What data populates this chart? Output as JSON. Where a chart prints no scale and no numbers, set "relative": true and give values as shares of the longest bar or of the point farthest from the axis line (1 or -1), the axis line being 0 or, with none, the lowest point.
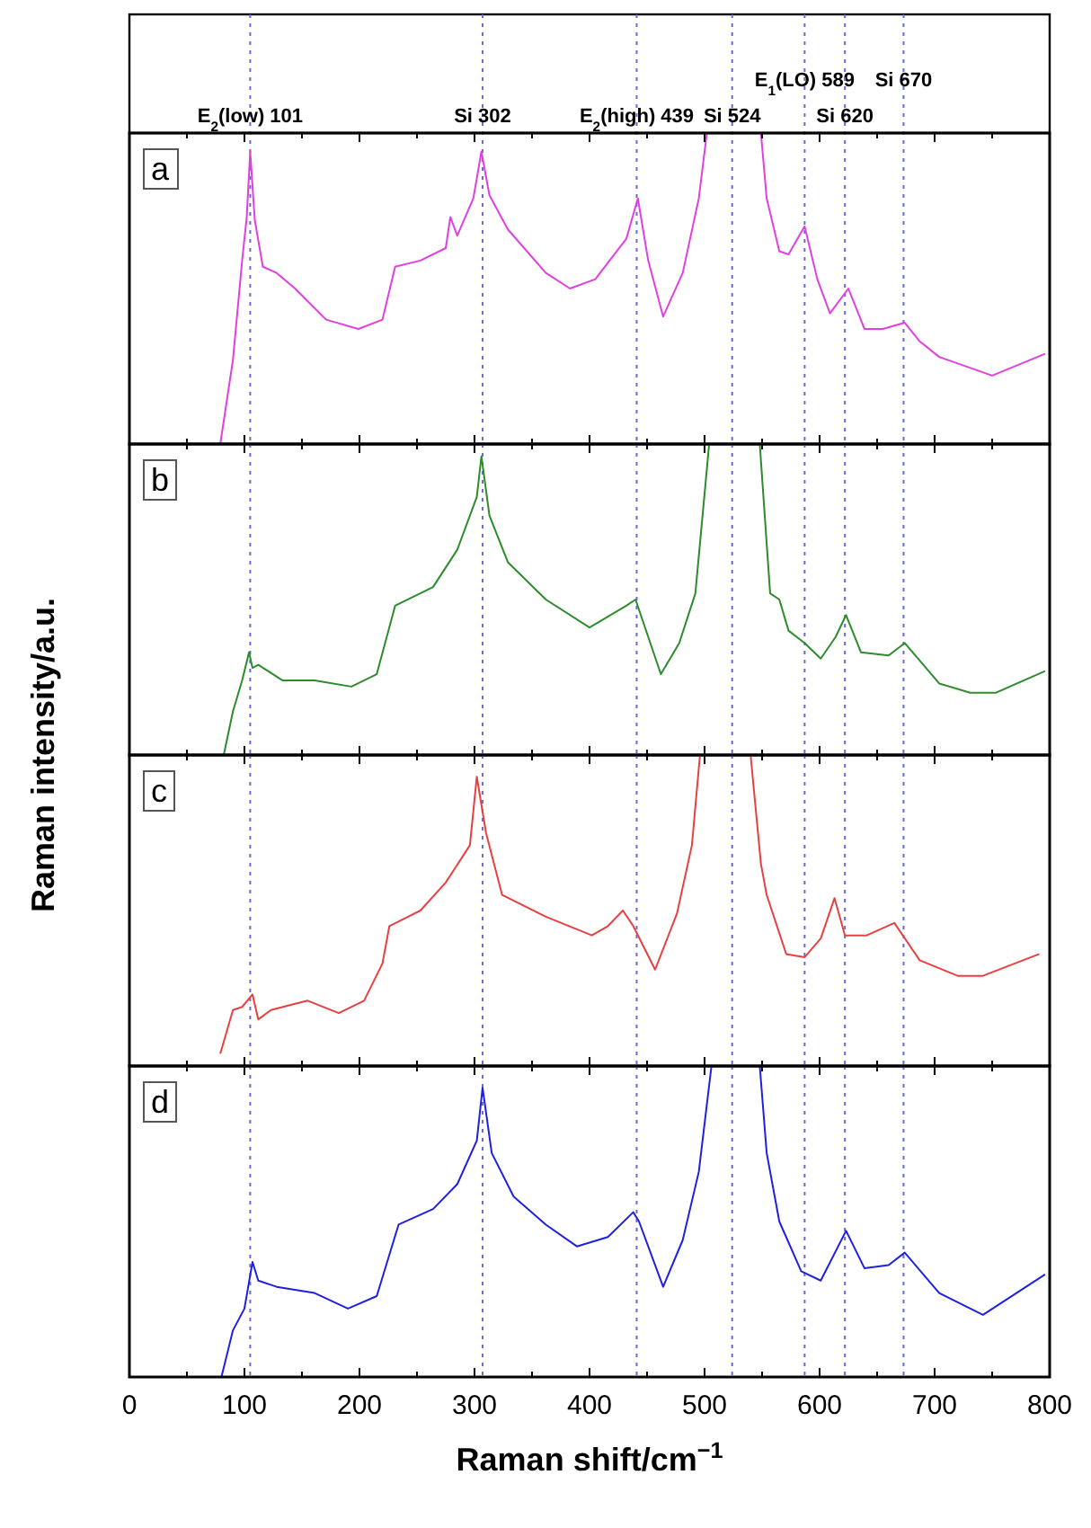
{
  "chart_data": [
    {
      "type": "line",
      "title": "a",
      "relative": true,
      "xlim": [
        0,
        800
      ],
      "tick_labels": false,
      "xticks": [
        0,
        {
          "value": 50,
          "label": null
        },
        100,
        {
          "value": 150,
          "label": null
        },
        200,
        {
          "value": 250,
          "label": null
        },
        300,
        {
          "value": 350,
          "label": null
        },
        400,
        {
          "value": 450,
          "label": null
        },
        500,
        {
          "value": 550,
          "label": null
        },
        600,
        {
          "value": 650,
          "label": null
        },
        700,
        {
          "value": 750,
          "label": null
        },
        800
      ],
      "ref_lines": [
        {
          "axis": "x",
          "value": 105,
          "label": "E$_{2}$(low) 101",
          "color": "#6a6ad0",
          "line_style": "dotted"
        },
        {
          "axis": "x",
          "value": 307,
          "label": "Si 302",
          "color": "#6a6ad0",
          "line_style": "dotted"
        },
        {
          "axis": "x",
          "value": 441,
          "label": "E$_{2}$(high)  439",
          "color": "#6a6ad0",
          "line_style": "dotted"
        },
        {
          "axis": "x",
          "value": 524,
          "label": "Si 524",
          "color": "#6a6ad0",
          "line_style": "dotted"
        },
        {
          "axis": "x",
          "value": 587,
          "label": "E$_{1}$(LO) 589",
          "color": "#6a6ad0",
          "line_style": "dotted"
        },
        {
          "axis": "x",
          "value": 622,
          "label": "Si 620",
          "color": "#6a6ad0",
          "line_style": "dotted"
        },
        {
          "axis": "x",
          "value": 673,
          "label": "Si 670",
          "color": "#6a6ad0",
          "line_style": "dotted"
        }
      ],
      "series": [
        {
          "color": "#e040e0",
          "x": [
            79,
            90,
            98,
            102,
            105,
            109,
            116,
            128,
            144,
            171,
            199,
            220,
            231,
            253,
            275,
            279,
            285,
            299,
            306,
            313,
            329,
            362,
            383,
            405,
            432,
            442,
            451,
            464,
            481,
            495,
            502,
            525,
            549,
            554,
            565,
            573,
            587,
            598,
            609,
            625,
            639,
            655,
            674,
            687,
            704,
            750,
            796
          ],
          "values": [
            0,
            0.27,
            0.59,
            0.73,
            0.94,
            0.72,
            0.57,
            0.55,
            0.5,
            0.4,
            0.37,
            0.4,
            0.57,
            0.59,
            0.63,
            0.73,
            0.67,
            0.79,
            0.94,
            0.8,
            0.69,
            0.55,
            0.5,
            0.53,
            0.66,
            0.79,
            0.59,
            0.41,
            0.55,
            0.79,
            1,
            null,
            1,
            0.79,
            0.62,
            0.61,
            0.7,
            0.53,
            0.42,
            0.5,
            0.37,
            0.37,
            0.39,
            0.33,
            0.28,
            0.22,
            0.29
          ]
        }
      ]
    },
    {
      "type": "line",
      "title": "b",
      "relative": true,
      "xlim": [
        0,
        800
      ],
      "tick_labels": false,
      "ylabel": "Raman intensity/a.u.",
      "xticks": [
        0,
        {
          "value": 50,
          "label": null
        },
        100,
        {
          "value": 150,
          "label": null
        },
        200,
        {
          "value": 250,
          "label": null
        },
        300,
        {
          "value": 350,
          "label": null
        },
        400,
        {
          "value": 450,
          "label": null
        },
        500,
        {
          "value": 550,
          "label": null
        },
        600,
        {
          "value": 650,
          "label": null
        },
        700,
        {
          "value": 750,
          "label": null
        },
        800
      ],
      "ref_lines": [
        {
          "axis": "x",
          "value": 105,
          "color": "#6a6ad0",
          "line_style": "dotted"
        },
        {
          "axis": "x",
          "value": 307,
          "color": "#6a6ad0",
          "line_style": "dotted"
        },
        {
          "axis": "x",
          "value": 441,
          "color": "#6a6ad0",
          "line_style": "dotted"
        },
        {
          "axis": "x",
          "value": 524,
          "color": "#6a6ad0",
          "line_style": "dotted"
        },
        {
          "axis": "x",
          "value": 587,
          "color": "#6a6ad0",
          "line_style": "dotted"
        },
        {
          "axis": "x",
          "value": 622,
          "color": "#6a6ad0",
          "line_style": "dotted"
        },
        {
          "axis": "x",
          "value": 673,
          "color": "#6a6ad0",
          "line_style": "dotted"
        }
      ],
      "series": [
        {
          "color": "#2e8b2e",
          "x": [
            82,
            90,
            98,
            104,
            107,
            112,
            133,
            161,
            193,
            215,
            231,
            264,
            285,
            302,
            306,
            313,
            329,
            362,
            400,
            432,
            440,
            462,
            478,
            492,
            504,
            525,
            548,
            557,
            565,
            573,
            587,
            601,
            614,
            623,
            636,
            660,
            674,
            704,
            731,
            753,
            796
          ],
          "values": [
            0,
            0.14,
            0.24,
            0.33,
            0.28,
            0.29,
            0.24,
            0.24,
            0.22,
            0.26,
            0.48,
            0.54,
            0.66,
            0.83,
            0.96,
            0.77,
            0.62,
            0.5,
            0.41,
            0.48,
            0.5,
            0.26,
            0.36,
            0.52,
            1,
            null,
            1,
            0.52,
            0.5,
            0.4,
            0.36,
            0.31,
            0.38,
            0.45,
            0.33,
            0.32,
            0.36,
            0.23,
            0.2,
            0.2,
            0.27
          ]
        }
      ]
    },
    {
      "type": "line",
      "title": "c",
      "relative": true,
      "xlim": [
        0,
        800
      ],
      "tick_labels": false,
      "xticks": [
        0,
        {
          "value": 50,
          "label": null
        },
        100,
        {
          "value": 150,
          "label": null
        },
        200,
        {
          "value": 250,
          "label": null
        },
        300,
        {
          "value": 350,
          "label": null
        },
        400,
        {
          "value": 450,
          "label": null
        },
        500,
        {
          "value": 550,
          "label": null
        },
        600,
        {
          "value": 650,
          "label": null
        },
        700,
        {
          "value": 750,
          "label": null
        },
        800
      ],
      "ref_lines": [
        {
          "axis": "x",
          "value": 105,
          "color": "#6a6ad0",
          "line_style": "dotted"
        },
        {
          "axis": "x",
          "value": 307,
          "color": "#6a6ad0",
          "line_style": "dotted"
        },
        {
          "axis": "x",
          "value": 441,
          "color": "#6a6ad0",
          "line_style": "dotted"
        },
        {
          "axis": "x",
          "value": 524,
          "color": "#6a6ad0",
          "line_style": "dotted"
        },
        {
          "axis": "x",
          "value": 587,
          "color": "#6a6ad0",
          "line_style": "dotted"
        },
        {
          "axis": "x",
          "value": 622,
          "color": "#6a6ad0",
          "line_style": "dotted"
        },
        {
          "axis": "x",
          "value": 673,
          "color": "#6a6ad0",
          "line_style": "dotted"
        }
      ],
      "series": [
        {
          "color": "#e84040",
          "x": [
            79,
            90,
            98,
            107,
            112,
            123,
            144,
            155,
            182,
            204,
            220,
            226,
            253,
            275,
            296,
            302,
            310,
            324,
            362,
            402,
            416,
            429,
            438,
            457,
            476,
            489,
            496,
            517,
            540,
            549,
            554,
            571,
            587,
            601,
            613,
            622,
            641,
            665,
            687,
            720,
            742,
            791
          ],
          "values": [
            0.04,
            0.18,
            0.19,
            0.23,
            0.15,
            0.18,
            0.2,
            0.21,
            0.17,
            0.21,
            0.33,
            0.45,
            0.5,
            0.59,
            0.71,
            0.93,
            0.75,
            0.55,
            0.48,
            0.42,
            0.45,
            0.5,
            0.45,
            0.31,
            0.49,
            0.71,
            1,
            null,
            1,
            0.65,
            0.55,
            0.36,
            0.35,
            0.41,
            0.54,
            0.42,
            0.42,
            0.46,
            0.34,
            0.29,
            0.29,
            0.36
          ]
        }
      ]
    },
    {
      "type": "line",
      "title": "d",
      "relative": true,
      "xlim": [
        0,
        800
      ],
      "xlabel": "Raman shift/cm$^{−1}$",
      "xticks": [
        0,
        {
          "value": 50,
          "label": null
        },
        100,
        {
          "value": 150,
          "label": null
        },
        200,
        {
          "value": 250,
          "label": null
        },
        300,
        {
          "value": 350,
          "label": null
        },
        400,
        {
          "value": 450,
          "label": null
        },
        500,
        {
          "value": 550,
          "label": null
        },
        600,
        {
          "value": 650,
          "label": null
        },
        700,
        {
          "value": 750,
          "label": null
        },
        800
      ],
      "ref_lines": [
        {
          "axis": "x",
          "value": 105,
          "color": "#6a6ad0",
          "line_style": "dotted"
        },
        {
          "axis": "x",
          "value": 307,
          "color": "#6a6ad0",
          "line_style": "dotted"
        },
        {
          "axis": "x",
          "value": 441,
          "color": "#6a6ad0",
          "line_style": "dotted"
        },
        {
          "axis": "x",
          "value": 524,
          "color": "#6a6ad0",
          "line_style": "dotted"
        },
        {
          "axis": "x",
          "value": 587,
          "color": "#6a6ad0",
          "line_style": "dotted"
        },
        {
          "axis": "x",
          "value": 622,
          "color": "#6a6ad0",
          "line_style": "dotted"
        },
        {
          "axis": "x",
          "value": 673,
          "color": "#6a6ad0",
          "line_style": "dotted"
        }
      ],
      "series": [
        {
          "color": "#2020e0",
          "x": [
            80,
            90,
            100,
            107,
            112,
            128,
            161,
            190,
            215,
            234,
            264,
            285,
            302,
            307,
            315,
            334,
            362,
            389,
            416,
            438,
            443,
            464,
            481,
            495,
            506,
            526,
            548,
            554,
            565,
            584,
            601,
            623,
            639,
            660,
            674,
            704,
            742,
            796
          ],
          "values": [
            0,
            0.15,
            0.22,
            0.37,
            0.31,
            0.29,
            0.27,
            0.22,
            0.26,
            0.49,
            0.54,
            0.62,
            0.76,
            0.93,
            0.72,
            0.58,
            0.49,
            0.42,
            0.45,
            0.53,
            0.5,
            0.29,
            0.44,
            0.66,
            1,
            null,
            1,
            0.72,
            0.5,
            0.34,
            0.31,
            0.47,
            0.35,
            0.36,
            0.4,
            0.27,
            0.2,
            0.33
          ]
        }
      ]
    }
  ]
}
